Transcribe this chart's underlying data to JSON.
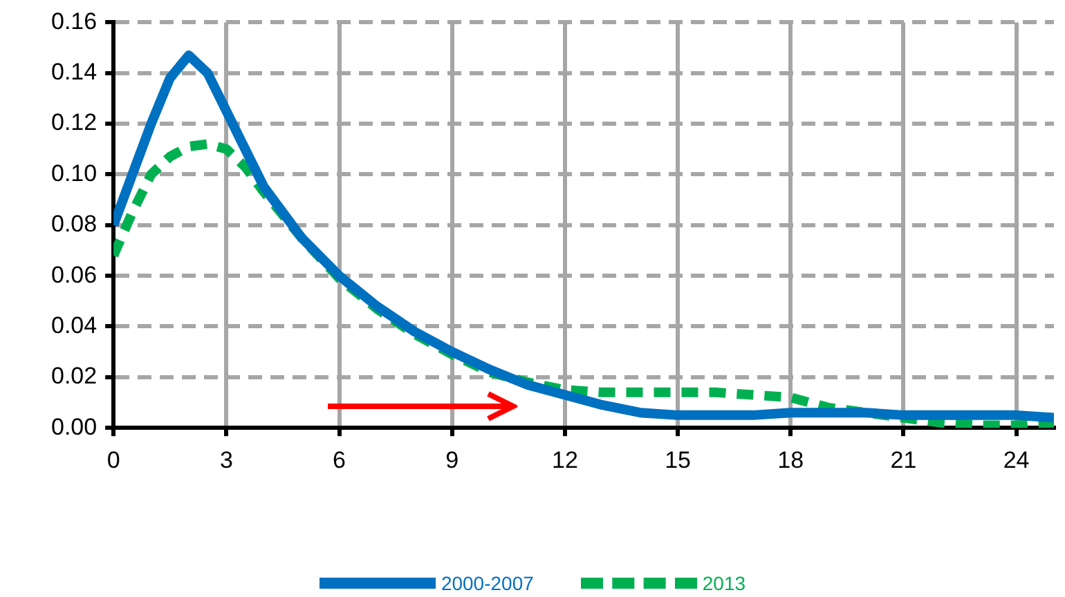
{
  "chart_data": {
    "type": "line",
    "x": [
      0,
      0.5,
      1,
      1.5,
      2,
      2.5,
      3,
      3.5,
      4,
      5,
      6,
      7,
      8,
      9,
      10,
      11,
      12,
      13,
      14,
      15,
      16,
      17,
      18,
      19,
      20,
      21,
      22,
      23,
      24,
      25
    ],
    "series": [
      {
        "name": "2000-2007",
        "color": "#0070c0",
        "line_style": "solid",
        "values": [
          0.08,
          0.1,
          0.12,
          0.138,
          0.147,
          0.14,
          0.125,
          0.11,
          0.095,
          0.075,
          0.06,
          0.048,
          0.038,
          0.03,
          0.023,
          0.017,
          0.013,
          0.009,
          0.006,
          0.005,
          0.005,
          0.005,
          0.006,
          0.006,
          0.006,
          0.005,
          0.005,
          0.005,
          0.005,
          0.004
        ]
      },
      {
        "name": "2013",
        "color": "#00b050",
        "line_style": "dashed",
        "values": [
          0.068,
          0.085,
          0.1,
          0.107,
          0.111,
          0.112,
          0.11,
          0.103,
          0.093,
          0.075,
          0.059,
          0.047,
          0.037,
          0.029,
          0.022,
          0.018,
          0.015,
          0.014,
          0.014,
          0.014,
          0.014,
          0.013,
          0.012,
          0.008,
          0.006,
          0.004,
          0.002,
          0.001,
          0.001,
          0.002
        ]
      }
    ],
    "xlim": [
      0,
      25
    ],
    "xticks": [
      0,
      3,
      6,
      9,
      12,
      15,
      18,
      21,
      24
    ],
    "ylim": [
      0,
      0.16
    ],
    "yticks": [
      {
        "value": 0,
        "label": "0.00"
      },
      {
        "value": 0.02,
        "label": "0.02"
      },
      {
        "value": 0.04,
        "label": "0.04"
      },
      {
        "value": 0.06,
        "label": "0.06"
      },
      {
        "value": 0.08,
        "label": "0.08"
      },
      {
        "value": 0.1,
        "label": "0.10"
      },
      {
        "value": 0.12,
        "label": "0.12"
      },
      {
        "value": 0.14,
        "label": "0.14"
      },
      {
        "value": 0.16,
        "label": "0.16"
      }
    ],
    "grid": true,
    "legend": "bottom",
    "marker": "none"
  }
}
